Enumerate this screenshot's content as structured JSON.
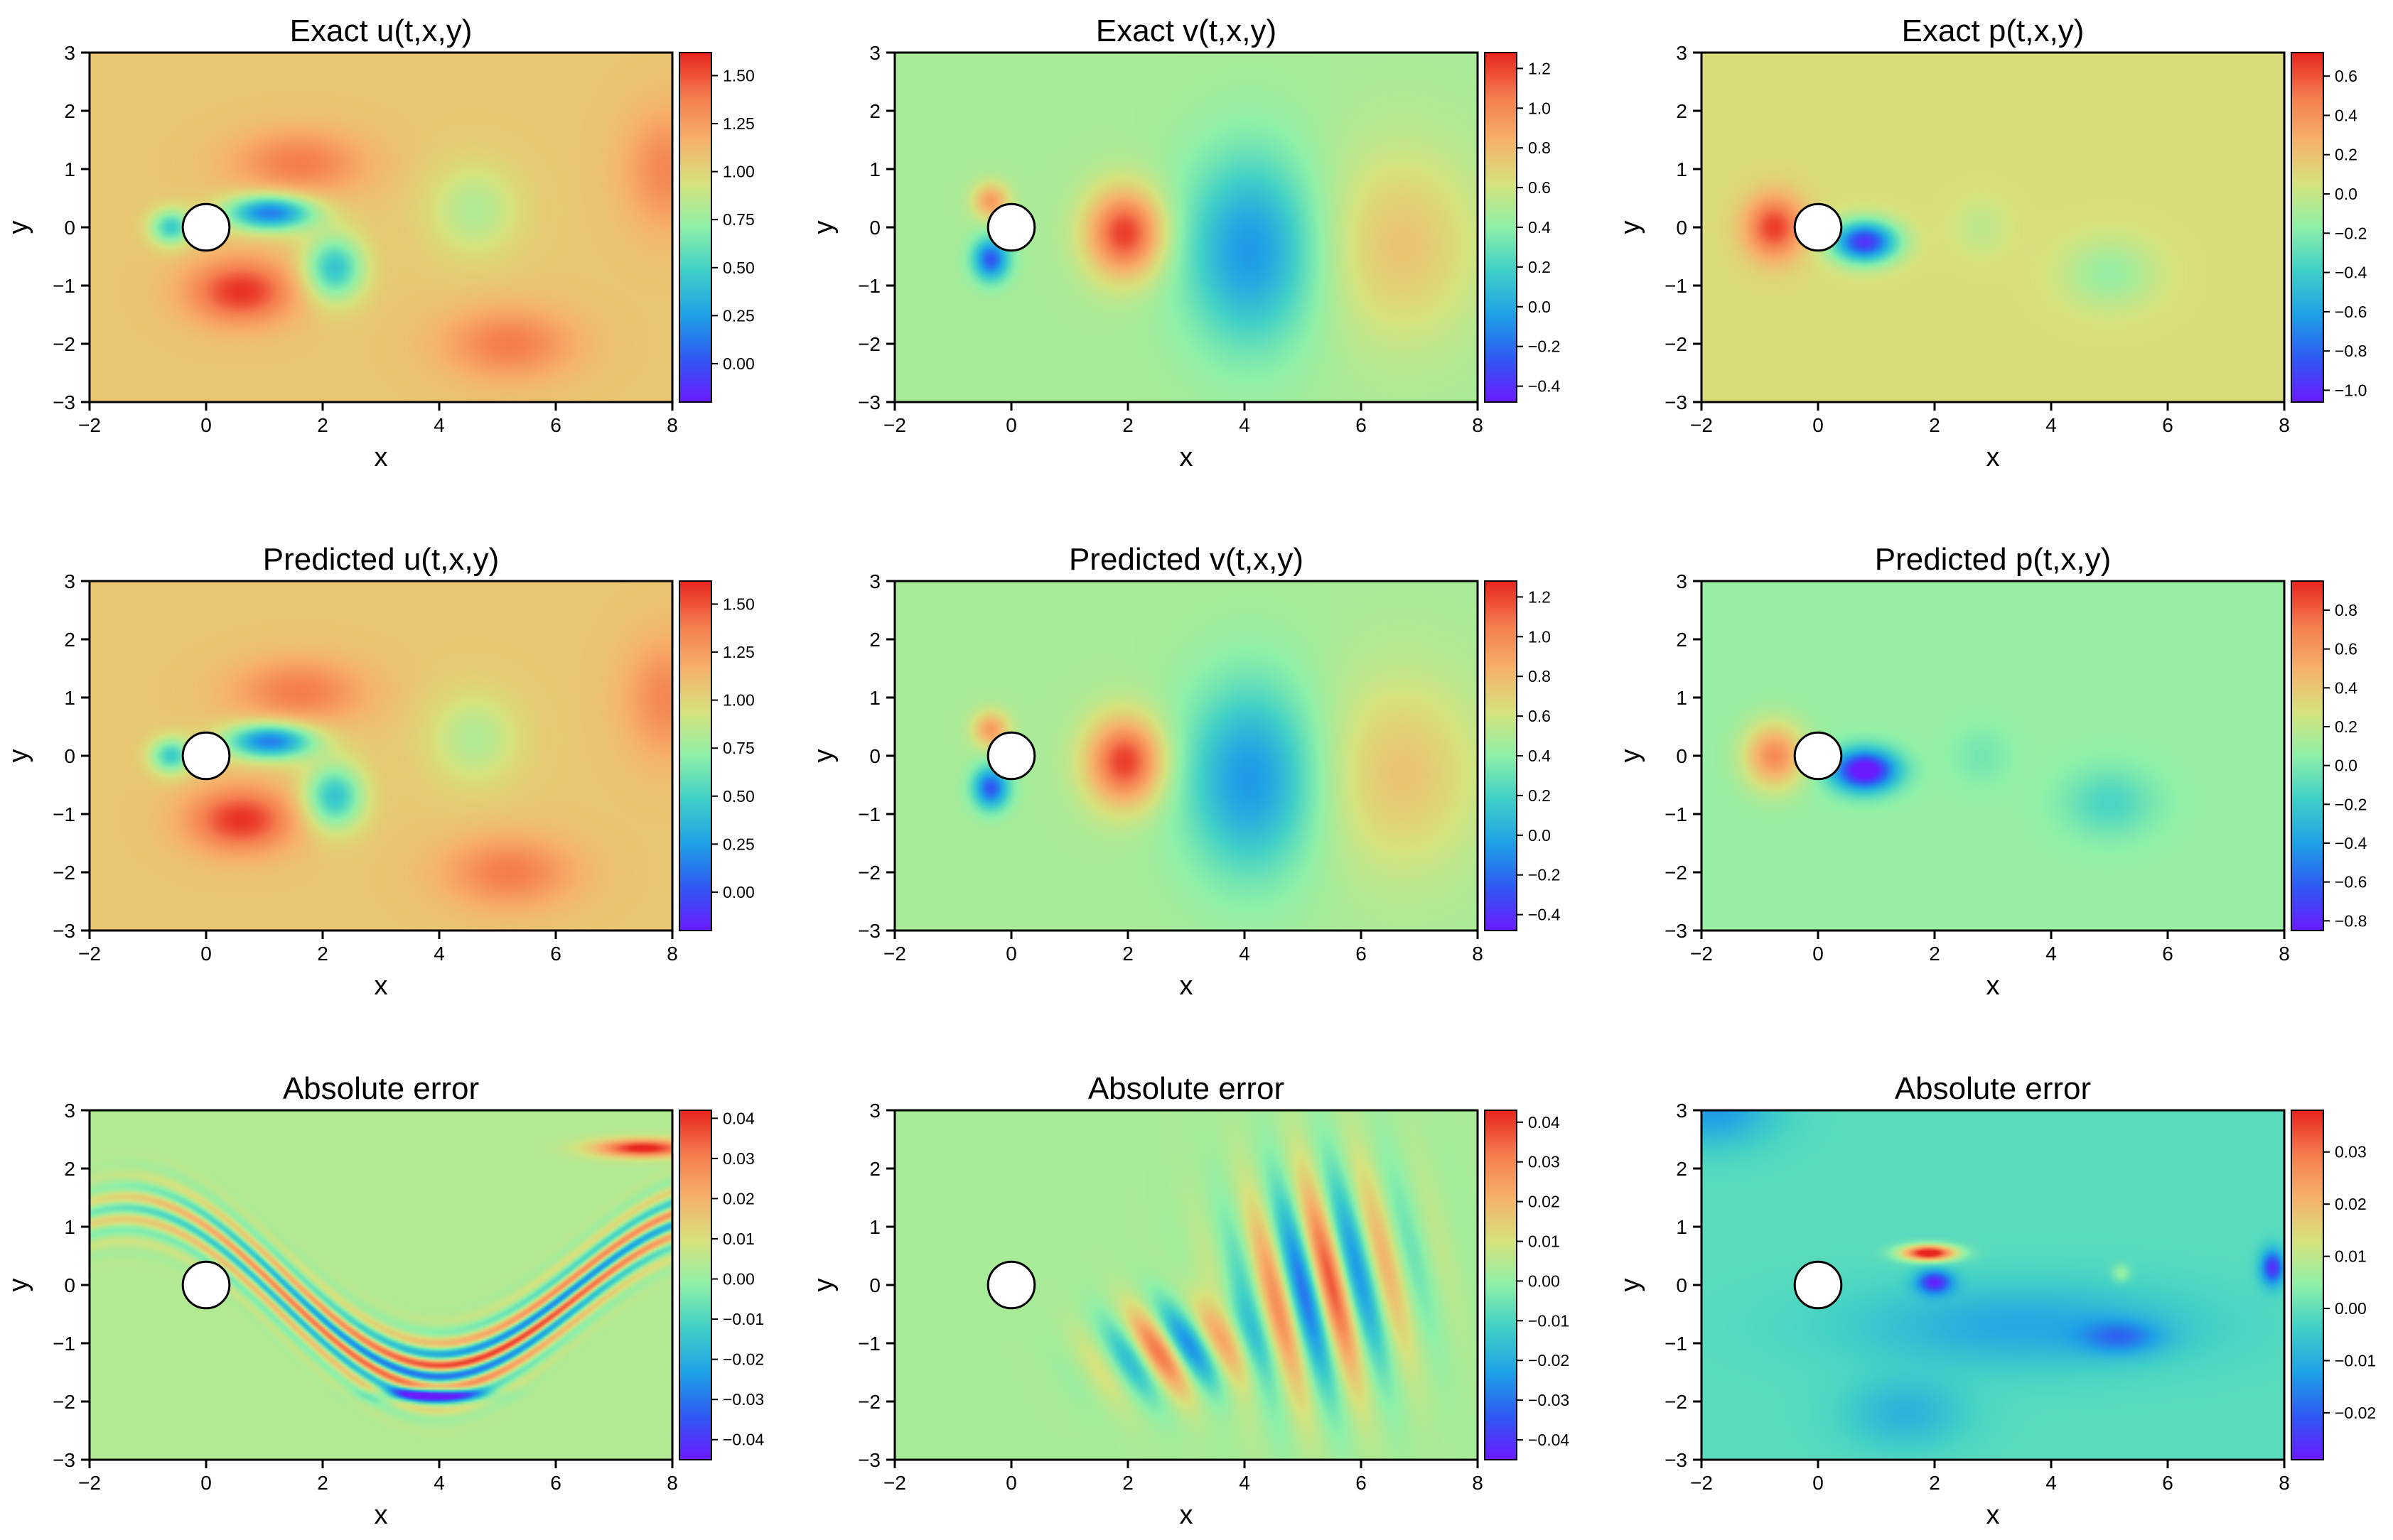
{
  "figure": {
    "rows": 3,
    "cols": 3,
    "colorscale": "rainbow",
    "colorscale_stops": [
      "#6a1bff",
      "#2f5bf3",
      "#1ea3e6",
      "#3fd0c8",
      "#8ef0a8",
      "#d6e27e",
      "#f6b26b",
      "#f57d4f",
      "#e8261e"
    ],
    "cylinder": {
      "center": [
        0,
        0
      ],
      "radius": 0.5
    }
  },
  "chart_data": [
    {
      "type": "heatmap",
      "title": "Exact u(t,x,y)",
      "xlabel": "x",
      "ylabel": "y",
      "xlim": [
        -2,
        8
      ],
      "ylim": [
        -3,
        3
      ],
      "xticks": [
        "-2",
        "0",
        "2",
        "4",
        "6",
        "8"
      ],
      "yticks": [
        "-3",
        "-2",
        "-1",
        "0",
        "1",
        "2",
        "3"
      ],
      "field": "u",
      "clim": [
        -0.2,
        1.62
      ],
      "colorbar_ticks": [
        0.0,
        0.25,
        0.5,
        0.75,
        1.0,
        1.25,
        1.5
      ],
      "colorbar_labels": [
        "0.00",
        "0.25",
        "0.50",
        "0.75",
        "1.00",
        "1.25",
        "1.50"
      ]
    },
    {
      "type": "heatmap",
      "title": "Exact v(t,x,y)",
      "xlabel": "x",
      "ylabel": "y",
      "xlim": [
        -2,
        8
      ],
      "ylim": [
        -3,
        3
      ],
      "xticks": [
        "-2",
        "0",
        "2",
        "4",
        "6",
        "8"
      ],
      "yticks": [
        "-3",
        "-2",
        "-1",
        "0",
        "1",
        "2",
        "3"
      ],
      "field": "v",
      "clim": [
        -0.48,
        1.28
      ],
      "colorbar_ticks": [
        -0.4,
        -0.2,
        0.0,
        0.2,
        0.4,
        0.6,
        0.8,
        1.0,
        1.2
      ],
      "colorbar_labels": [
        "-0.4",
        "-0.2",
        "0.0",
        "0.2",
        "0.4",
        "0.6",
        "0.8",
        "1.0",
        "1.2"
      ]
    },
    {
      "type": "heatmap",
      "title": "Exact p(t,x,y)",
      "xlabel": "x",
      "ylabel": "y",
      "xlim": [
        -2,
        8
      ],
      "ylim": [
        -3,
        3
      ],
      "xticks": [
        "-2",
        "0",
        "2",
        "4",
        "6",
        "8"
      ],
      "yticks": [
        "-3",
        "-2",
        "-1",
        "0",
        "1",
        "2",
        "3"
      ],
      "field": "p",
      "clim": [
        -1.06,
        0.72
      ],
      "colorbar_ticks": [
        -1.0,
        -0.8,
        -0.6,
        -0.4,
        -0.2,
        0.0,
        0.2,
        0.4,
        0.6
      ],
      "colorbar_labels": [
        "-1.0",
        "-0.8",
        "-0.6",
        "-0.4",
        "-0.2",
        "0.0",
        "0.2",
        "0.4",
        "0.6"
      ]
    },
    {
      "type": "heatmap",
      "title": "Predicted u(t,x,y)",
      "xlabel": "x",
      "ylabel": "y",
      "xlim": [
        -2,
        8
      ],
      "ylim": [
        -3,
        3
      ],
      "xticks": [
        "-2",
        "0",
        "2",
        "4",
        "6",
        "8"
      ],
      "yticks": [
        "-3",
        "-2",
        "-1",
        "0",
        "1",
        "2",
        "3"
      ],
      "field": "u",
      "clim": [
        -0.2,
        1.62
      ],
      "colorbar_ticks": [
        0.0,
        0.25,
        0.5,
        0.75,
        1.0,
        1.25,
        1.5
      ],
      "colorbar_labels": [
        "0.00",
        "0.25",
        "0.50",
        "0.75",
        "1.00",
        "1.25",
        "1.50"
      ]
    },
    {
      "type": "heatmap",
      "title": "Predicted v(t,x,y)",
      "xlabel": "x",
      "ylabel": "y",
      "xlim": [
        -2,
        8
      ],
      "ylim": [
        -3,
        3
      ],
      "xticks": [
        "-2",
        "0",
        "2",
        "4",
        "6",
        "8"
      ],
      "yticks": [
        "-3",
        "-2",
        "-1",
        "0",
        "1",
        "2",
        "3"
      ],
      "field": "v",
      "clim": [
        -0.48,
        1.28
      ],
      "colorbar_ticks": [
        -0.4,
        -0.2,
        0.0,
        0.2,
        0.4,
        0.6,
        0.8,
        1.0,
        1.2
      ],
      "colorbar_labels": [
        "-0.4",
        "-0.2",
        "0.0",
        "0.2",
        "0.4",
        "0.6",
        "0.8",
        "1.0",
        "1.2"
      ]
    },
    {
      "type": "heatmap",
      "title": "Predicted p(t,x,y)",
      "xlabel": "x",
      "ylabel": "y",
      "xlim": [
        -2,
        8
      ],
      "ylim": [
        -3,
        3
      ],
      "xticks": [
        "-2",
        "0",
        "2",
        "4",
        "6",
        "8"
      ],
      "yticks": [
        "-3",
        "-2",
        "-1",
        "0",
        "1",
        "2",
        "3"
      ],
      "field": "p",
      "clim": [
        -0.85,
        0.95
      ],
      "colorbar_ticks": [
        -0.8,
        -0.6,
        -0.4,
        -0.2,
        0.0,
        0.2,
        0.4,
        0.6,
        0.8
      ],
      "colorbar_labels": [
        "-0.8",
        "-0.6",
        "-0.4",
        "-0.2",
        "0.0",
        "0.2",
        "0.4",
        "0.6",
        "0.8"
      ]
    },
    {
      "type": "heatmap",
      "title": "Absolute error",
      "xlabel": "x",
      "ylabel": "y",
      "xlim": [
        -2,
        8
      ],
      "ylim": [
        -3,
        3
      ],
      "xticks": [
        "-2",
        "0",
        "2",
        "4",
        "6",
        "8"
      ],
      "yticks": [
        "-3",
        "-2",
        "-1",
        "0",
        "1",
        "2",
        "3"
      ],
      "field": "eu",
      "clim": [
        -0.045,
        0.042
      ],
      "colorbar_ticks": [
        -0.04,
        -0.03,
        -0.02,
        -0.01,
        0.0,
        0.01,
        0.02,
        0.03,
        0.04
      ],
      "colorbar_labels": [
        "-0.04",
        "-0.03",
        "-0.02",
        "-0.01",
        "0.00",
        "0.01",
        "0.02",
        "0.03",
        "0.04"
      ]
    },
    {
      "type": "heatmap",
      "title": "Absolute error",
      "xlabel": "x",
      "ylabel": "y",
      "xlim": [
        -2,
        8
      ],
      "ylim": [
        -3,
        3
      ],
      "xticks": [
        "-2",
        "0",
        "2",
        "4",
        "6",
        "8"
      ],
      "yticks": [
        "-3",
        "-2",
        "-1",
        "0",
        "1",
        "2",
        "3"
      ],
      "field": "ev",
      "clim": [
        -0.045,
        0.043
      ],
      "colorbar_ticks": [
        -0.04,
        -0.03,
        -0.02,
        -0.01,
        0.0,
        0.01,
        0.02,
        0.03,
        0.04
      ],
      "colorbar_labels": [
        "-0.04",
        "-0.03",
        "-0.02",
        "-0.01",
        "0.00",
        "0.01",
        "0.02",
        "0.03",
        "0.04"
      ]
    },
    {
      "type": "heatmap",
      "title": "Absolute error",
      "xlabel": "x",
      "ylabel": "y",
      "xlim": [
        -2,
        8
      ],
      "ylim": [
        -3,
        3
      ],
      "xticks": [
        "-2",
        "0",
        "2",
        "4",
        "6",
        "8"
      ],
      "yticks": [
        "-3",
        "-2",
        "-1",
        "0",
        "1",
        "2",
        "3"
      ],
      "field": "ep",
      "clim": [
        -0.029,
        0.038
      ],
      "colorbar_ticks": [
        -0.02,
        -0.01,
        0.0,
        0.01,
        0.02,
        0.03
      ],
      "colorbar_labels": [
        "-0.02",
        "-0.01",
        "0.00",
        "0.01",
        "0.02",
        "0.03"
      ]
    }
  ]
}
